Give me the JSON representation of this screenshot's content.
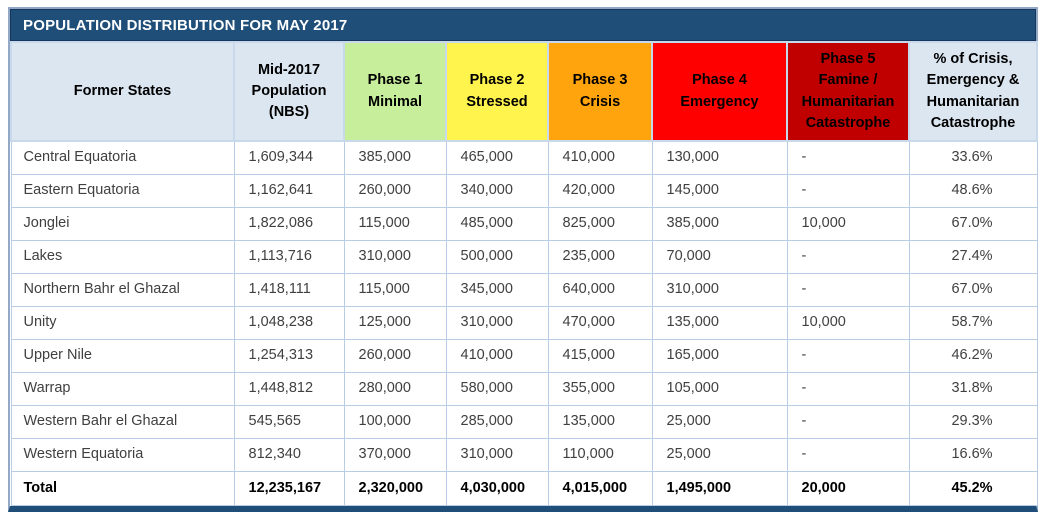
{
  "title": "POPULATION DISTRIBUTION FOR MAY 2017",
  "colors": {
    "title_bar_bg": "#1F4E79",
    "title_bar_text": "#FFFFFF",
    "header_default_bg": "#DCE6F1",
    "header_default_text": "#000000",
    "phase1_bg": "#C6EE9B",
    "phase2_bg": "#FFF34D",
    "phase3_bg": "#FFA40D",
    "phase4_bg": "#FF0000",
    "phase5_bg": "#C00000",
    "phase_header_text": "#000000",
    "grid_line": "#B8CCE4",
    "frame_border": "#92A8C4",
    "frame_bottom": "#1F4E79",
    "data_text": "#404040"
  },
  "table": {
    "columns": [
      {
        "key": "state",
        "label": "Former States",
        "bg": "#DCE6F1",
        "fg": "#000000"
      },
      {
        "key": "population",
        "label": "Mid-2017\nPopulation\n(NBS)",
        "bg": "#DCE6F1",
        "fg": "#000000"
      },
      {
        "key": "phase1",
        "label": "Phase 1\nMinimal",
        "bg": "#C6EE9B",
        "fg": "#000000"
      },
      {
        "key": "phase2",
        "label": "Phase 2\nStressed",
        "bg": "#FFF34D",
        "fg": "#000000"
      },
      {
        "key": "phase3",
        "label": "Phase 3\nCrisis",
        "bg": "#FFA40D",
        "fg": "#000000"
      },
      {
        "key": "phase4",
        "label": "Phase 4\nEmergency",
        "bg": "#FF0000",
        "fg": "#000000"
      },
      {
        "key": "phase5",
        "label": "Phase 5\nFamine /\nHumanitarian\nCatastrophe",
        "bg": "#C00000",
        "fg": "#000000"
      },
      {
        "key": "pct",
        "label": "% of Crisis,\nEmergency &\nHumanitarian\nCatastrophe",
        "bg": "#DCE6F1",
        "fg": "#000000"
      }
    ],
    "rows": [
      {
        "state": "Central Equatoria",
        "population": "1,609,344",
        "phase1": "385,000",
        "phase2": "465,000",
        "phase3": "410,000",
        "phase4": "130,000",
        "phase5": "-",
        "pct": "33.6%"
      },
      {
        "state": "Eastern Equatoria",
        "population": "1,162,641",
        "phase1": "260,000",
        "phase2": "340,000",
        "phase3": "420,000",
        "phase4": "145,000",
        "phase5": "-",
        "pct": "48.6%"
      },
      {
        "state": "Jonglei",
        "population": "1,822,086",
        "phase1": "115,000",
        "phase2": "485,000",
        "phase3": "825,000",
        "phase4": "385,000",
        "phase5": "10,000",
        "pct": "67.0%"
      },
      {
        "state": "Lakes",
        "population": "1,113,716",
        "phase1": "310,000",
        "phase2": "500,000",
        "phase3": "235,000",
        "phase4": "70,000",
        "phase5": "-",
        "pct": "27.4%"
      },
      {
        "state": "Northern Bahr el Ghazal",
        "population": "1,418,111",
        "phase1": "115,000",
        "phase2": "345,000",
        "phase3": "640,000",
        "phase4": "310,000",
        "phase5": "-",
        "pct": "67.0%"
      },
      {
        "state": "Unity",
        "population": "1,048,238",
        "phase1": "125,000",
        "phase2": "310,000",
        "phase3": "470,000",
        "phase4": "135,000",
        "phase5": "10,000",
        "pct": "58.7%"
      },
      {
        "state": "Upper Nile",
        "population": "1,254,313",
        "phase1": "260,000",
        "phase2": "410,000",
        "phase3": "415,000",
        "phase4": "165,000",
        "phase5": "-",
        "pct": "46.2%"
      },
      {
        "state": "Warrap",
        "population": "1,448,812",
        "phase1": "280,000",
        "phase2": "580,000",
        "phase3": "355,000",
        "phase4": "105,000",
        "phase5": "-",
        "pct": "31.8%"
      },
      {
        "state": "Western Bahr el Ghazal",
        "population": "545,565",
        "phase1": "100,000",
        "phase2": "285,000",
        "phase3": "135,000",
        "phase4": "25,000",
        "phase5": "-",
        "pct": "29.3%"
      },
      {
        "state": "Western Equatoria",
        "population": "812,340",
        "phase1": "370,000",
        "phase2": "310,000",
        "phase3": "110,000",
        "phase4": "25,000",
        "phase5": "-",
        "pct": "16.6%"
      }
    ],
    "total_row": {
      "state": "Total",
      "population": "12,235,167",
      "phase1": "2,320,000",
      "phase2": "4,030,000",
      "phase3": "4,015,000",
      "phase4": "1,495,000",
      "phase5": "20,000",
      "pct": "45.2%"
    }
  }
}
